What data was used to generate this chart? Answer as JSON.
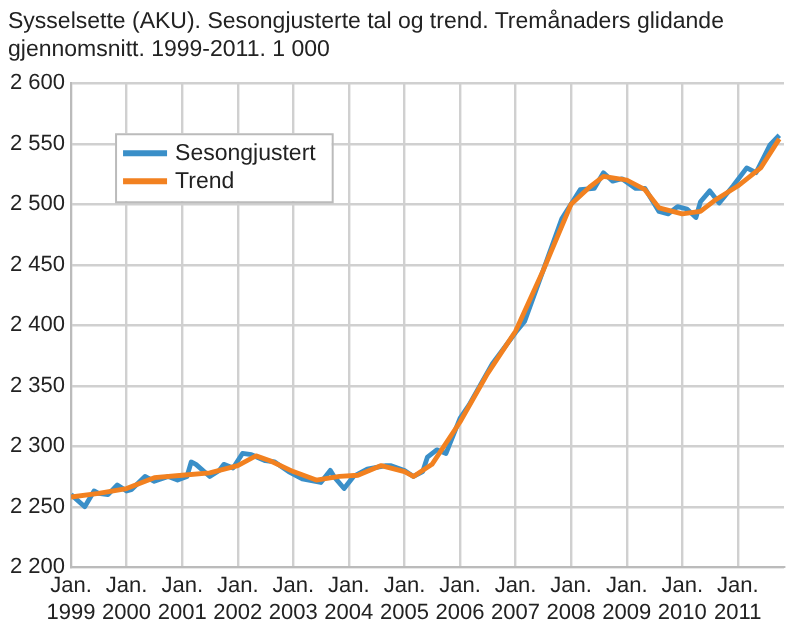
{
  "chart_data": {
    "type": "line",
    "title": "Sysselsette (AKU).  Sesongjusterte tal og trend. Tremånaders glidande gjennomsnitt. 1999-2011. 1 000",
    "xlim": [
      "1999-01",
      "2011-11"
    ],
    "xticks": [
      {
        "value": "1999-01",
        "label": "Jan. 1999"
      },
      {
        "value": "2000-01",
        "label": "Jan. 2000"
      },
      {
        "value": "2001-01",
        "label": "Jan. 2001"
      },
      {
        "value": "2002-01",
        "label": "Jan. 2002"
      },
      {
        "value": "2003-01",
        "label": "Jan. 2003"
      },
      {
        "value": "2004-01",
        "label": "Jan. 2004"
      },
      {
        "value": "2005-01",
        "label": "Jan. 2005"
      },
      {
        "value": "2006-01",
        "label": "Jan. 2006"
      },
      {
        "value": "2007-01",
        "label": "Jan. 2007"
      },
      {
        "value": "2008-01",
        "label": "Jan. 2008"
      },
      {
        "value": "2009-01",
        "label": "Jan. 2009"
      },
      {
        "value": "2010-01",
        "label": "Jan. 2010"
      },
      {
        "value": "2011-01",
        "label": "Jan. 2011"
      }
    ],
    "ylim": [
      2200,
      2600
    ],
    "yticks": [
      {
        "value": 2200,
        "label": "2 200"
      },
      {
        "value": 2250,
        "label": "2 250"
      },
      {
        "value": 2300,
        "label": "2 300"
      },
      {
        "value": 2350,
        "label": "2 350"
      },
      {
        "value": 2400,
        "label": "2 400"
      },
      {
        "value": 2450,
        "label": "2 450"
      },
      {
        "value": 2500,
        "label": "2 500"
      },
      {
        "value": 2550,
        "label": "2 550"
      },
      {
        "value": 2600,
        "label": "2 600"
      }
    ],
    "grid": true,
    "legend": "top left",
    "marker": "none",
    "line_style": "solid",
    "series": [
      {
        "name": "Trend",
        "color": "#f28120",
        "x": [
          "1999-01",
          "1999-07",
          "2000-01",
          "2000-07",
          "2001-01",
          "2001-07",
          "2002-01",
          "2002-05",
          "2002-08",
          "2003-01",
          "2003-06",
          "2003-11",
          "2004-03",
          "2004-08",
          "2005-01",
          "2005-03",
          "2005-07",
          "2006-01",
          "2006-07",
          "2007-01",
          "2007-07",
          "2008-01",
          "2008-05",
          "2008-08",
          "2009-01",
          "2009-05",
          "2009-08",
          "2010-01",
          "2010-05",
          "2010-08",
          "2011-01",
          "2011-06",
          "2011-10"
        ],
        "values": [
          2258,
          2261,
          2265,
          2274,
          2276,
          2278,
          2284,
          2292,
          2288,
          2279,
          2272,
          2275,
          2276,
          2284,
          2279,
          2275,
          2285,
          2320,
          2360,
          2395,
          2445,
          2500,
          2514,
          2523,
          2520,
          2512,
          2497,
          2492,
          2494,
          2503,
          2515,
          2530,
          2554
        ]
      },
      {
        "name": "Sesongjustert",
        "color": "#3a8fc8",
        "x": [
          "1999-01",
          "1999-04",
          "1999-06",
          "1999-07",
          "1999-09",
          "1999-11",
          "2000-01",
          "2000-02",
          "2000-05",
          "2000-07",
          "2000-10",
          "2000-12",
          "2001-02",
          "2001-03",
          "2001-04",
          "2001-07",
          "2001-09",
          "2001-10",
          "2001-12",
          "2002-02",
          "2002-04",
          "2002-07",
          "2002-09",
          "2002-12",
          "2003-03",
          "2003-07",
          "2003-09",
          "2003-10",
          "2003-12",
          "2004-02",
          "2004-05",
          "2004-09",
          "2004-10",
          "2005-01",
          "2005-03",
          "2005-05",
          "2005-06",
          "2005-08",
          "2005-10",
          "2006-01",
          "2006-03",
          "2006-08",
          "2007-01",
          "2007-03",
          "2007-07",
          "2007-11",
          "2008-03",
          "2008-06",
          "2008-08",
          "2008-10",
          "2008-12",
          "2009-03",
          "2009-05",
          "2009-08",
          "2009-10",
          "2009-12",
          "2010-02",
          "2010-04",
          "2010-05",
          "2010-07",
          "2010-09",
          "2010-12",
          "2011-03",
          "2011-05",
          "2011-08",
          "2011-10"
        ],
        "values": [
          2260,
          2250,
          2263,
          2261,
          2260,
          2268,
          2263,
          2264,
          2275,
          2271,
          2275,
          2272,
          2275,
          2287,
          2285,
          2275,
          2280,
          2285,
          2282,
          2294,
          2293,
          2288,
          2287,
          2279,
          2273,
          2270,
          2280,
          2274,
          2265,
          2275,
          2281,
          2284,
          2284,
          2280,
          2275,
          2279,
          2291,
          2297,
          2294,
          2323,
          2334,
          2368,
          2394,
          2403,
          2445,
          2488,
          2512,
          2513,
          2526,
          2519,
          2521,
          2513,
          2513,
          2494,
          2492,
          2498,
          2496,
          2489,
          2502,
          2511,
          2501,
          2515,
          2530,
          2526,
          2549,
          2557
        ]
      }
    ]
  }
}
